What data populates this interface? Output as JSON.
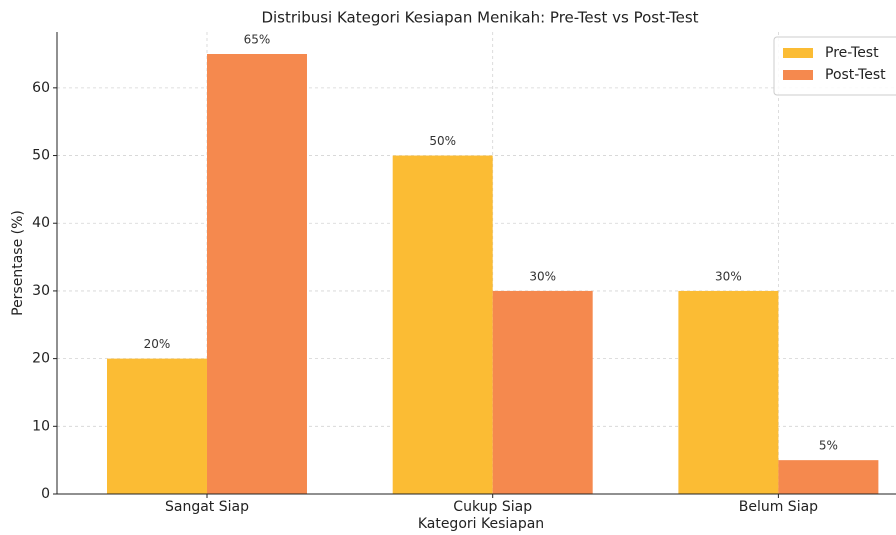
{
  "chart_data": {
    "type": "bar",
    "title": "Distribusi Kategori Kesiapan Menikah: Pre-Test vs Post-Test",
    "x_label": "Kategori Kesiapan",
    "y_label": "Persentase (%)",
    "categories": [
      "Sangat Siap",
      "Cukup Siap",
      "Belum Siap"
    ],
    "series": [
      {
        "name": "Pre-Test",
        "color": "#fbbc34",
        "values": [
          20,
          50,
          30
        ],
        "value_labels": [
          "20%",
          "50%",
          "30%"
        ]
      },
      {
        "name": "Post-Test",
        "color": "#f5894e",
        "values": [
          65,
          30,
          5
        ],
        "value_labels": [
          "65%",
          "30%",
          "5%"
        ]
      }
    ],
    "ylim": [
      0,
      68.25
    ],
    "yticks": [
      0,
      10,
      20,
      30,
      40,
      50,
      60
    ],
    "grid": true,
    "legend": "upper right"
  }
}
